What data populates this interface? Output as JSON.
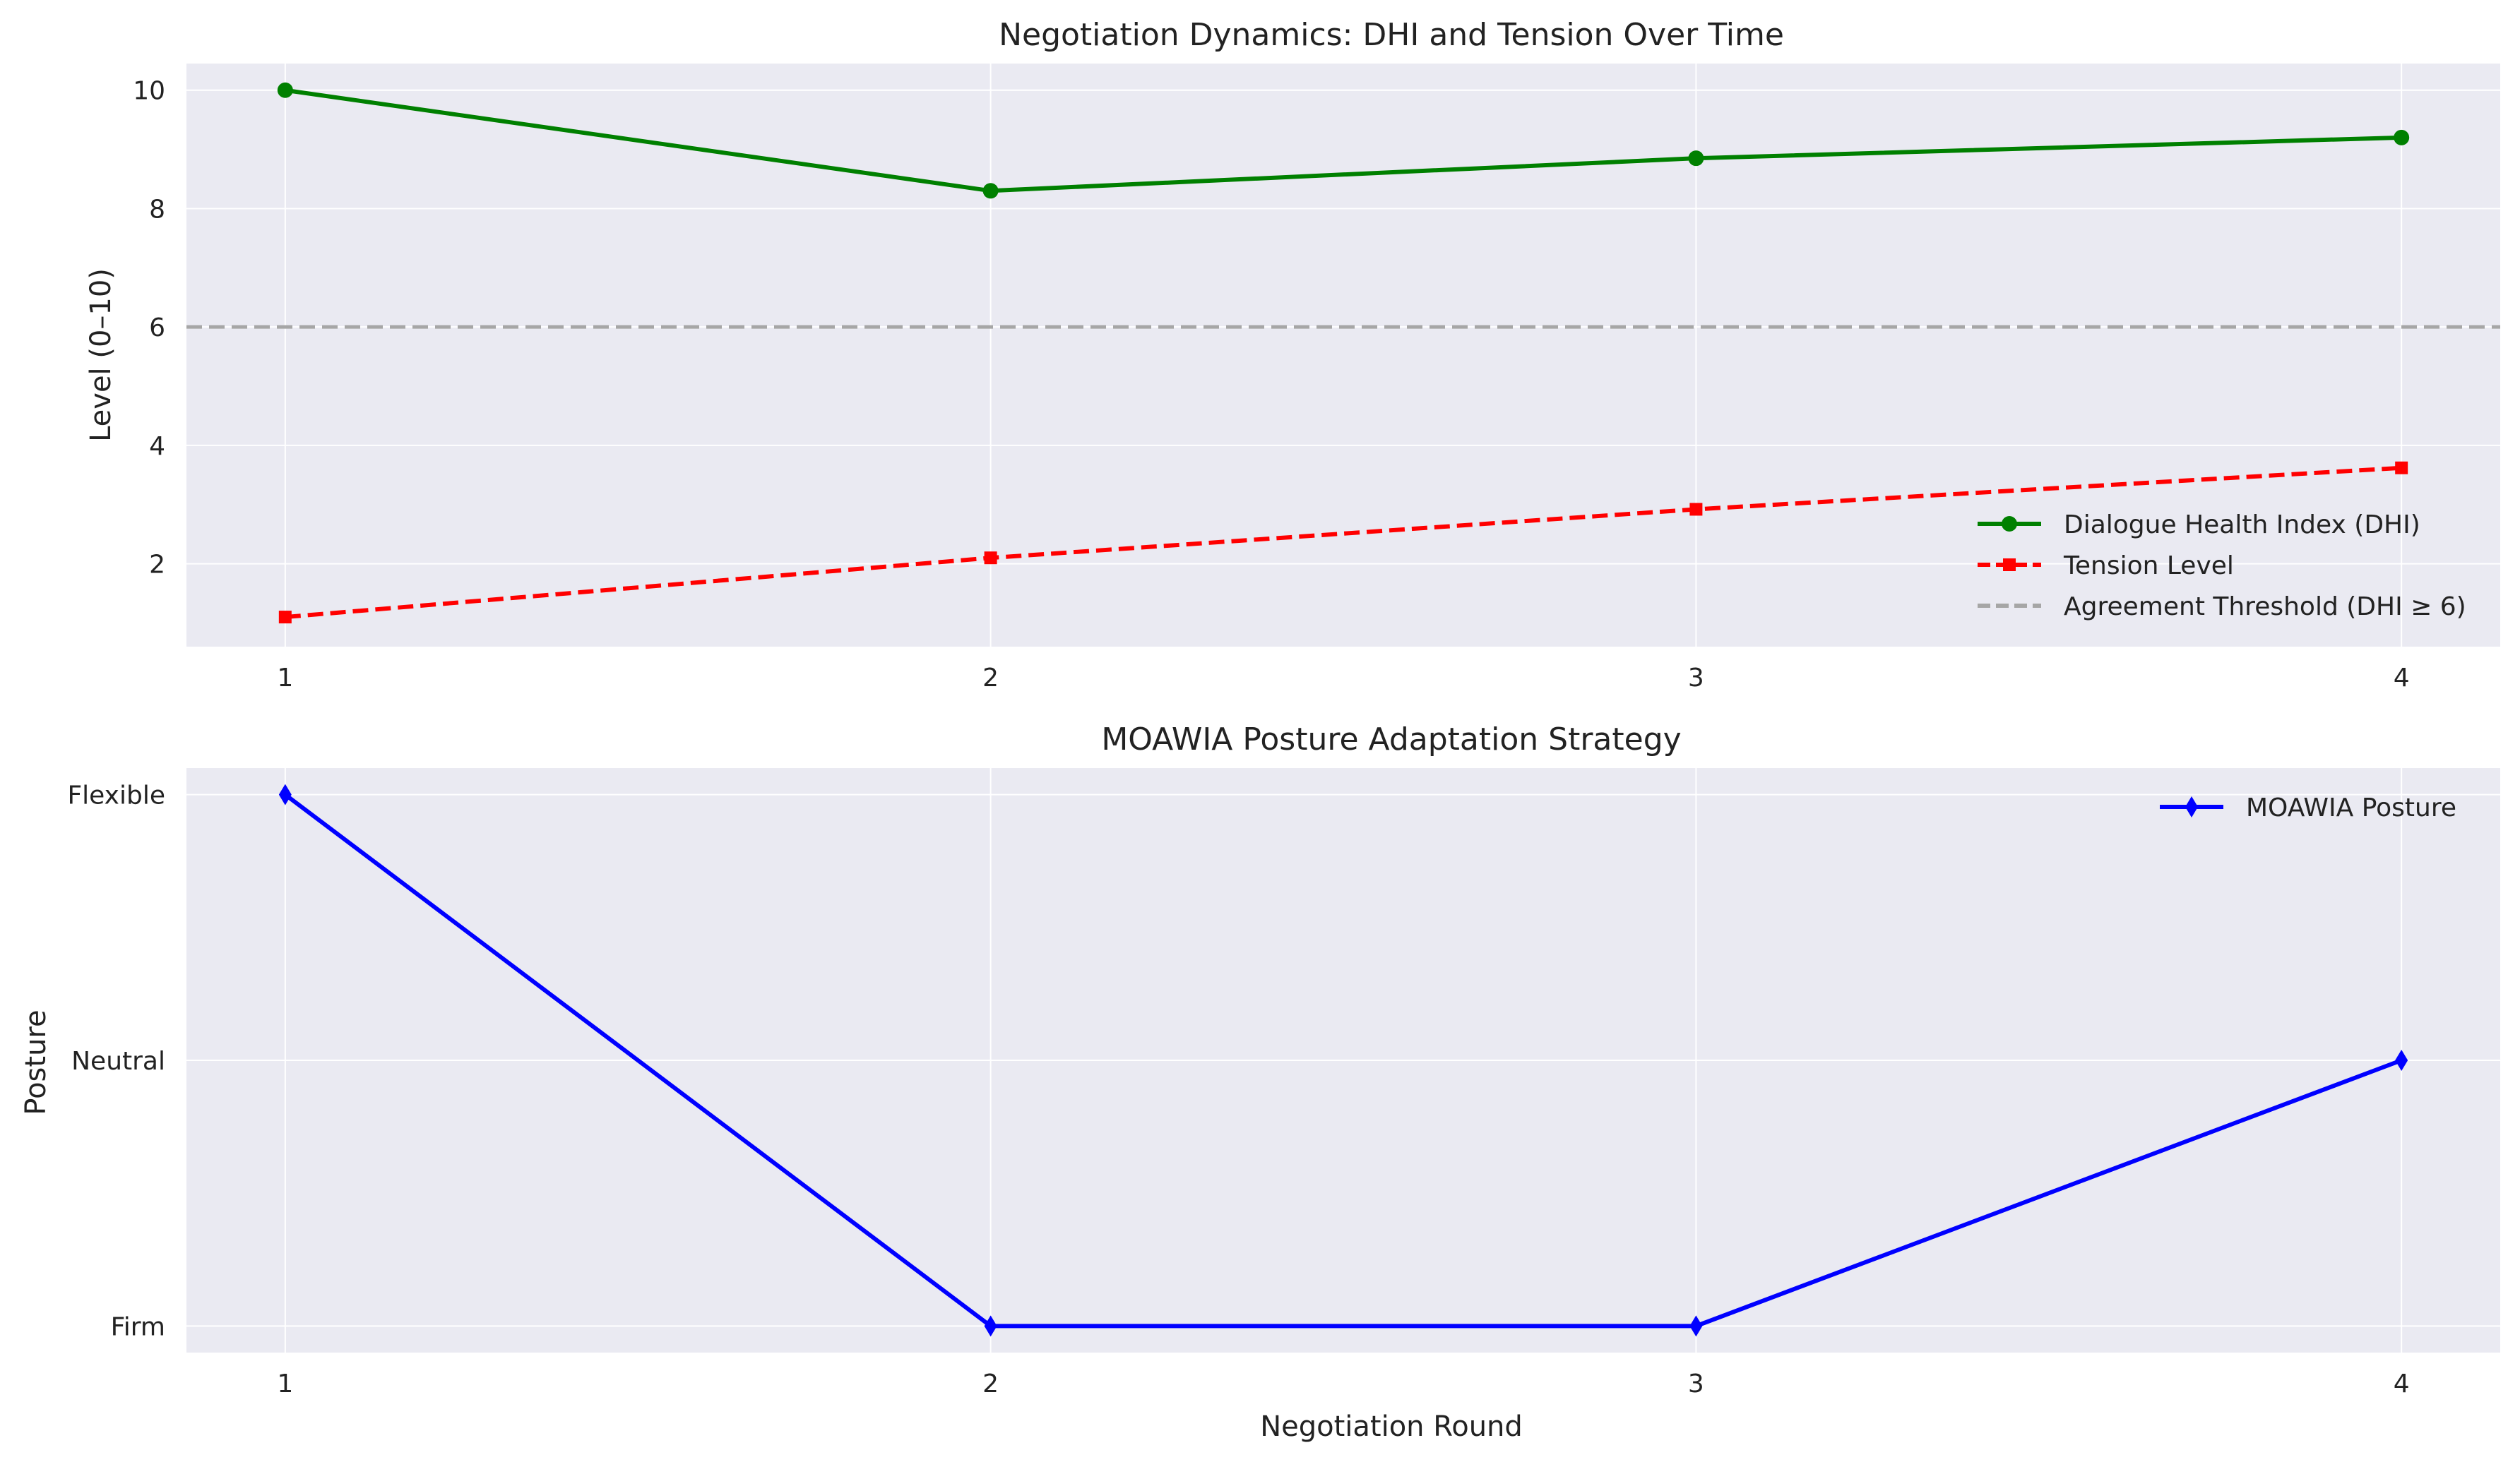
{
  "chart_data": [
    {
      "type": "line",
      "title": "Negotiation Dynamics: DHI and Tension Over Time",
      "xlabel": "",
      "ylabel": "Level (0–10)",
      "x": [
        1,
        2,
        3,
        4
      ],
      "x_ticks": [
        "1",
        "2",
        "3",
        "4"
      ],
      "xlim": [
        0.86,
        4.14
      ],
      "ylim": [
        0.6,
        10.45
      ],
      "y_ticks": [
        "2",
        "4",
        "6",
        "8",
        "10"
      ],
      "y_tick_values": [
        2,
        4,
        6,
        8,
        10
      ],
      "grid": true,
      "legend_position": "lower-right",
      "series": [
        {
          "name": "Dialogue Health Index (DHI)",
          "values": [
            10.0,
            8.3,
            8.85,
            9.2
          ],
          "color": "#008000",
          "style": "solid",
          "marker": "circle"
        },
        {
          "name": "Tension Level",
          "values": [
            1.1,
            2.1,
            2.92,
            3.62
          ],
          "color": "#ff0000",
          "style": "dashed",
          "marker": "square"
        }
      ],
      "reference_lines": [
        {
          "name": "Agreement Threshold (DHI ≥ 6)",
          "y": 6,
          "color": "#a6a6a6",
          "style": "dashed"
        }
      ]
    },
    {
      "type": "line",
      "title": "MOAWIA Posture Adaptation Strategy",
      "xlabel": "Negotiation Round",
      "ylabel": "Posture",
      "x": [
        1,
        2,
        3,
        4
      ],
      "x_ticks": [
        "1",
        "2",
        "3",
        "4"
      ],
      "xlim": [
        0.86,
        4.14
      ],
      "y_categories": [
        "Firm",
        "Neutral",
        "Flexible"
      ],
      "ylim": [
        -0.1,
        2.1
      ],
      "grid": true,
      "legend_position": "upper-right",
      "series": [
        {
          "name": "MOAWIA Posture",
          "values": [
            "Flexible",
            "Firm",
            "Firm",
            "Neutral"
          ],
          "color": "#0000ff",
          "style": "solid",
          "marker": "diamond"
        }
      ]
    }
  ]
}
